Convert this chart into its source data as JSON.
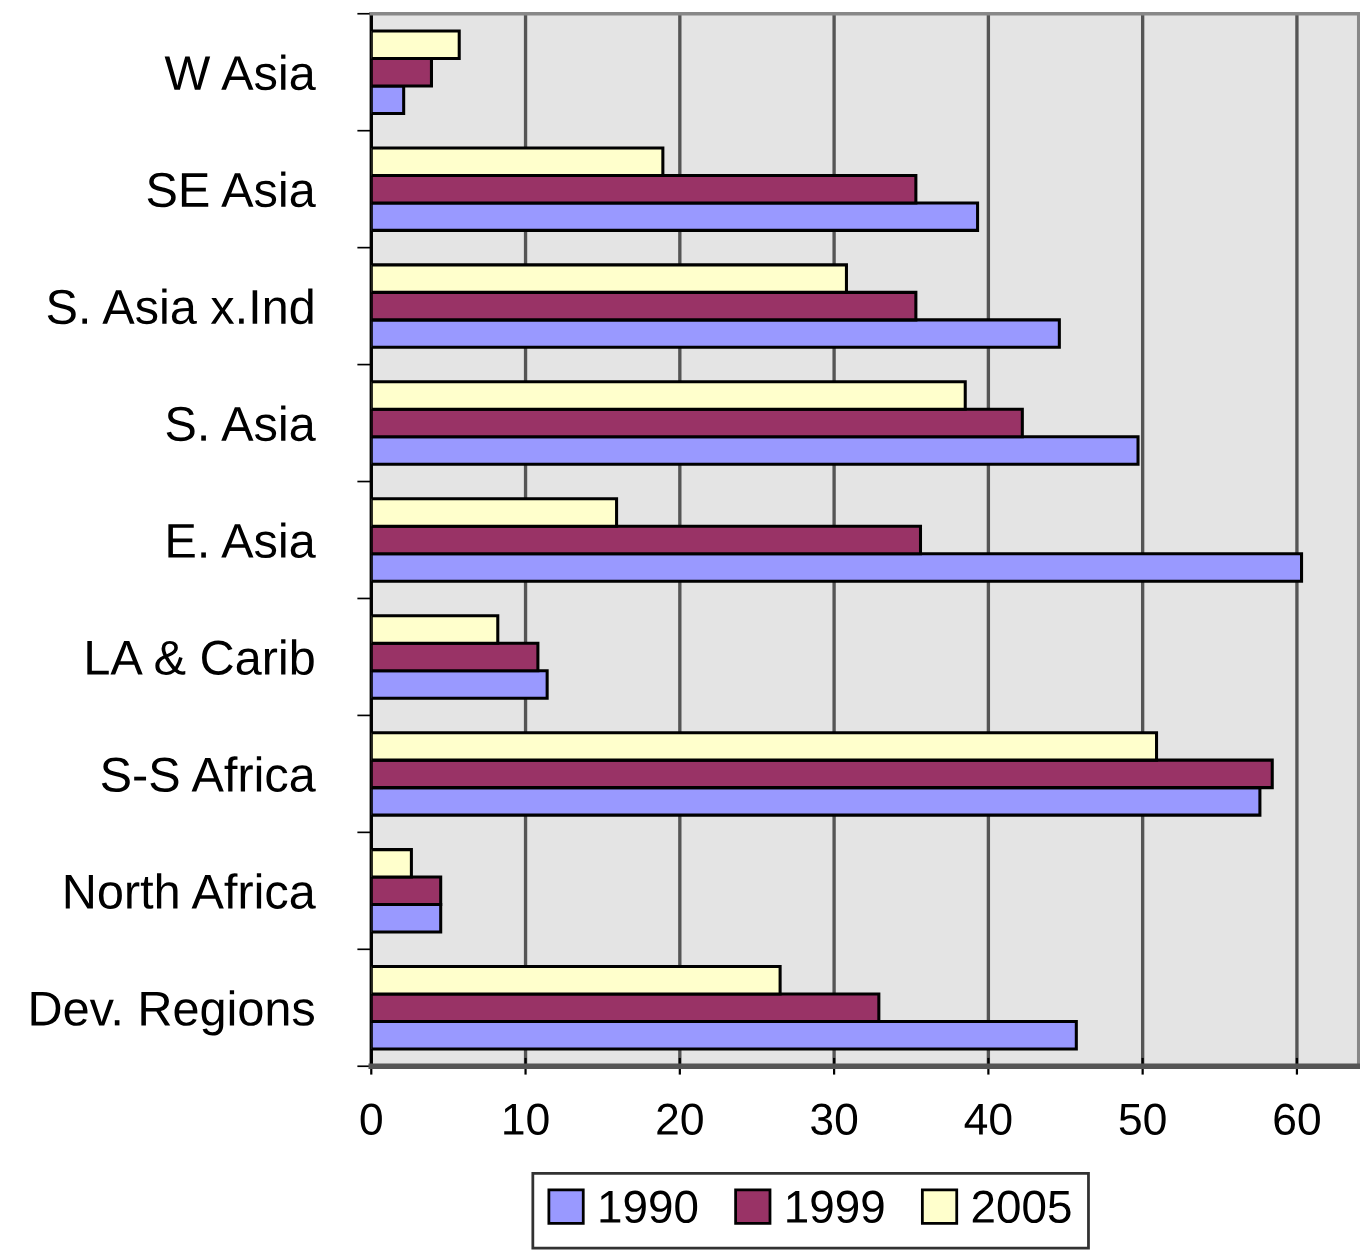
{
  "chart_data": {
    "type": "bar",
    "orientation": "horizontal",
    "categories": [
      "W Asia",
      "SE Asia",
      "S. Asia x.Ind",
      "S. Asia",
      "E. Asia",
      "LA & Carib",
      "S-S Africa",
      "North Africa",
      "Dev. Regions"
    ],
    "series": [
      {
        "name": "1990",
        "color": "#9999ff",
        "values": [
          2.1,
          39.3,
          44.6,
          49.7,
          60.3,
          11.4,
          57.6,
          4.5,
          45.7
        ]
      },
      {
        "name": "1999",
        "color": "#993366",
        "values": [
          3.9,
          35.3,
          35.3,
          42.2,
          35.6,
          10.8,
          58.4,
          4.5,
          32.9
        ]
      },
      {
        "name": "2005",
        "color": "#ffffcc",
        "values": [
          5.7,
          18.9,
          30.8,
          38.5,
          15.9,
          8.2,
          50.9,
          2.6,
          26.5
        ]
      }
    ],
    "xlim": [
      0,
      64
    ],
    "xticks": [
      0,
      10,
      20,
      30,
      40,
      50,
      60
    ],
    "grid": "x",
    "legend": "bottom"
  }
}
